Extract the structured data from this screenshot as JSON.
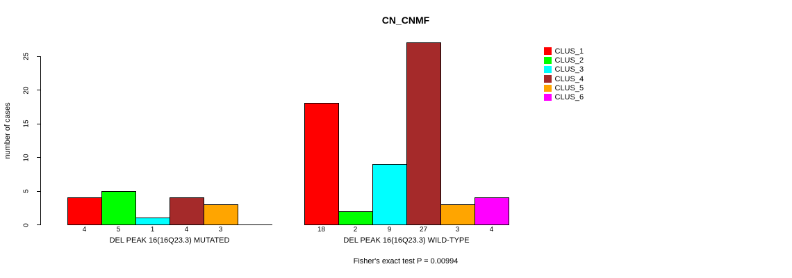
{
  "chart_data": {
    "type": "bar",
    "title": "CN_CNMF",
    "ylabel": "number of cases",
    "ylim": [
      0,
      27
    ],
    "yticks": [
      0,
      5,
      10,
      15,
      20,
      25
    ],
    "grid": false,
    "legend_position": "right",
    "categories": [
      "DEL PEAK 16(16Q23.3) MUTATED",
      "DEL PEAK 16(16Q23.3) WILD-TYPE"
    ],
    "series": [
      {
        "name": "CLUS_1",
        "color": "#ff0000",
        "values": [
          4,
          18
        ]
      },
      {
        "name": "CLUS_2",
        "color": "#00ff00",
        "values": [
          5,
          2
        ]
      },
      {
        "name": "CLUS_3",
        "color": "#00ffff",
        "values": [
          1,
          9
        ]
      },
      {
        "name": "CLUS_4",
        "color": "#a52a2a",
        "values": [
          4,
          27
        ]
      },
      {
        "name": "CLUS_5",
        "color": "#ffa500",
        "values": [
          3,
          3
        ]
      },
      {
        "name": "CLUS_6",
        "color": "#ff00ff",
        "values": [
          0,
          4
        ]
      }
    ],
    "bar_value_labels_shown": true,
    "zero_value_bars_hidden": true,
    "annotation": "Fisher's exact test P = 0.00994"
  }
}
